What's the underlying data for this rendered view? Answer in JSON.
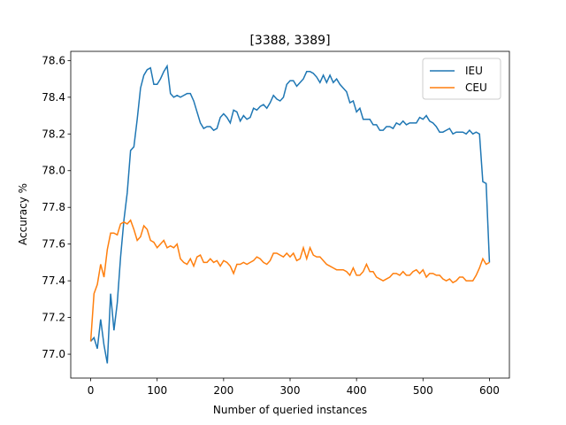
{
  "chart_data": {
    "type": "line",
    "title": "[3388, 3389]",
    "xlabel": "Number of queried instances",
    "ylabel": "Accuracy %",
    "x": [
      0,
      5,
      10,
      15,
      20,
      25,
      30,
      35,
      40,
      45,
      50,
      55,
      60,
      65,
      70,
      75,
      80,
      85,
      90,
      95,
      100,
      105,
      110,
      115,
      120,
      125,
      130,
      135,
      140,
      145,
      150,
      155,
      160,
      165,
      170,
      175,
      180,
      185,
      190,
      195,
      200,
      205,
      210,
      215,
      220,
      225,
      230,
      235,
      240,
      245,
      250,
      255,
      260,
      265,
      270,
      275,
      280,
      285,
      290,
      295,
      300,
      305,
      310,
      315,
      320,
      325,
      330,
      335,
      340,
      345,
      350,
      355,
      360,
      365,
      370,
      375,
      380,
      385,
      390,
      395,
      400,
      405,
      410,
      415,
      420,
      425,
      430,
      435,
      440,
      445,
      450,
      455,
      460,
      465,
      470,
      475,
      480,
      485,
      490,
      495,
      500,
      505,
      510,
      515,
      520,
      525,
      530,
      535,
      540,
      545,
      550,
      555,
      560,
      565,
      570,
      575,
      580,
      585,
      590,
      595,
      600
    ],
    "series": [
      {
        "name": "IEU",
        "color": "#1f77b4",
        "values": [
          77.07,
          77.09,
          77.03,
          77.19,
          77.05,
          76.95,
          77.33,
          77.13,
          77.28,
          77.53,
          77.73,
          77.88,
          78.11,
          78.13,
          78.28,
          78.45,
          78.52,
          78.55,
          78.56,
          78.47,
          78.47,
          78.5,
          78.54,
          78.57,
          78.42,
          78.4,
          78.41,
          78.4,
          78.41,
          78.42,
          78.42,
          78.38,
          78.32,
          78.26,
          78.23,
          78.24,
          78.24,
          78.22,
          78.23,
          78.29,
          78.31,
          78.29,
          78.26,
          78.33,
          78.32,
          78.27,
          78.3,
          78.28,
          78.29,
          78.34,
          78.33,
          78.35,
          78.36,
          78.34,
          78.37,
          78.41,
          78.39,
          78.38,
          78.4,
          78.47,
          78.49,
          78.49,
          78.46,
          78.48,
          78.5,
          78.54,
          78.54,
          78.53,
          78.51,
          78.48,
          78.52,
          78.48,
          78.52,
          78.48,
          78.5,
          78.47,
          78.45,
          78.43,
          78.37,
          78.38,
          78.32,
          78.34,
          78.28,
          78.28,
          78.28,
          78.25,
          78.25,
          78.22,
          78.22,
          78.24,
          78.24,
          78.23,
          78.26,
          78.25,
          78.27,
          78.25,
          78.26,
          78.26,
          78.26,
          78.29,
          78.28,
          78.3,
          78.27,
          78.26,
          78.24,
          78.21,
          78.21,
          78.22,
          78.23,
          78.2,
          78.21,
          78.21,
          78.21,
          78.2,
          78.22,
          78.2,
          78.21,
          78.2,
          77.94,
          77.93,
          77.5
        ]
      },
      {
        "name": "CEU",
        "color": "#ff7f0e",
        "values": [
          77.07,
          77.33,
          77.38,
          77.49,
          77.42,
          77.57,
          77.66,
          77.66,
          77.65,
          77.71,
          77.72,
          77.71,
          77.73,
          77.68,
          77.62,
          77.64,
          77.7,
          77.68,
          77.62,
          77.61,
          77.58,
          77.6,
          77.62,
          77.58,
          77.59,
          77.58,
          77.6,
          77.52,
          77.5,
          77.49,
          77.52,
          77.48,
          77.53,
          77.54,
          77.5,
          77.5,
          77.52,
          77.5,
          77.51,
          77.48,
          77.51,
          77.5,
          77.48,
          77.44,
          77.49,
          77.49,
          77.5,
          77.49,
          77.5,
          77.51,
          77.53,
          77.52,
          77.5,
          77.49,
          77.51,
          77.55,
          77.55,
          77.54,
          77.53,
          77.55,
          77.53,
          77.55,
          77.51,
          77.52,
          77.58,
          77.52,
          77.58,
          77.54,
          77.53,
          77.53,
          77.51,
          77.49,
          77.48,
          77.47,
          77.46,
          77.46,
          77.46,
          77.45,
          77.43,
          77.47,
          77.43,
          77.43,
          77.45,
          77.49,
          77.45,
          77.45,
          77.42,
          77.41,
          77.4,
          77.41,
          77.42,
          77.44,
          77.44,
          77.43,
          77.45,
          77.43,
          77.43,
          77.45,
          77.46,
          77.44,
          77.46,
          77.42,
          77.44,
          77.44,
          77.43,
          77.43,
          77.41,
          77.4,
          77.41,
          77.39,
          77.4,
          77.42,
          77.42,
          77.4,
          77.4,
          77.4,
          77.43,
          77.47,
          77.52,
          77.49,
          77.5
        ]
      }
    ],
    "xlim": [
      -30,
      630
    ],
    "ylim": [
      76.87,
      78.65
    ],
    "xticks": [
      0,
      100,
      200,
      300,
      400,
      500,
      600
    ],
    "yticks": [
      {
        "value": 77,
        "label": "77.0"
      },
      77.2,
      77.4,
      77.6,
      77.8,
      {
        "value": 78,
        "label": "78.0"
      },
      78.2,
      78.4,
      78.6
    ],
    "legend": "upper right"
  }
}
